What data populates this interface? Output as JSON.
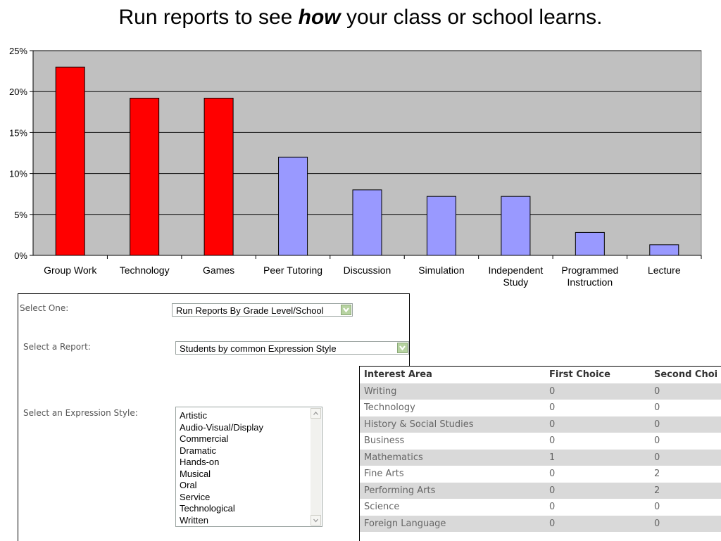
{
  "headline": {
    "pre": "Run reports to see ",
    "emph": "how",
    "post": " your class or school learns."
  },
  "chart_data": {
    "type": "bar",
    "categories": [
      "Group Work",
      "Technology",
      "Games",
      "Peer Tutoring",
      "Discussion",
      "Simulation",
      "Independent Study",
      "Programmed Instruction",
      "Lecture"
    ],
    "values": [
      23,
      19.2,
      19.2,
      12,
      8,
      7.2,
      7.2,
      2.8,
      1.3
    ],
    "ylim": [
      0,
      25
    ],
    "yticks": [
      "0%",
      "5%",
      "10%",
      "15%",
      "20%",
      "25%"
    ],
    "bar_colors": [
      "#ff0000",
      "#ff0000",
      "#ff0000",
      "#9999ff",
      "#9999ff",
      "#9999ff",
      "#9999ff",
      "#9999ff",
      "#9999ff"
    ],
    "plot_background": "#c0c0c0",
    "grid": true,
    "title": "",
    "xlabel": "",
    "ylabel": ""
  },
  "form": {
    "select_one_label": "Select One:",
    "select_one_value": "Run Reports By Grade Level/School",
    "report_label": "Select a Report:",
    "report_value": "Students by common Expression Style",
    "expression_label": "Select an Expression Style:",
    "expression_options": [
      "Artistic",
      "Audio-Visual/Display",
      "Commercial",
      "Dramatic",
      "Hands-on",
      "Musical",
      "Oral",
      "Service",
      "Technological",
      "Written"
    ],
    "arrow_color": "#b7d3a1"
  },
  "table": {
    "headers": [
      "Interest Area",
      "First Choice",
      "Second Choi"
    ],
    "rows": [
      [
        "Writing",
        "0",
        "0"
      ],
      [
        "Technology",
        "0",
        "0"
      ],
      [
        "History & Social Studies",
        "0",
        "0"
      ],
      [
        "Business",
        "0",
        "0"
      ],
      [
        "Mathematics",
        "1",
        "0"
      ],
      [
        "Fine Arts",
        "0",
        "2"
      ],
      [
        "Performing Arts",
        "0",
        "2"
      ],
      [
        "Science",
        "0",
        "0"
      ],
      [
        "Foreign Language",
        "0",
        "0"
      ]
    ]
  }
}
